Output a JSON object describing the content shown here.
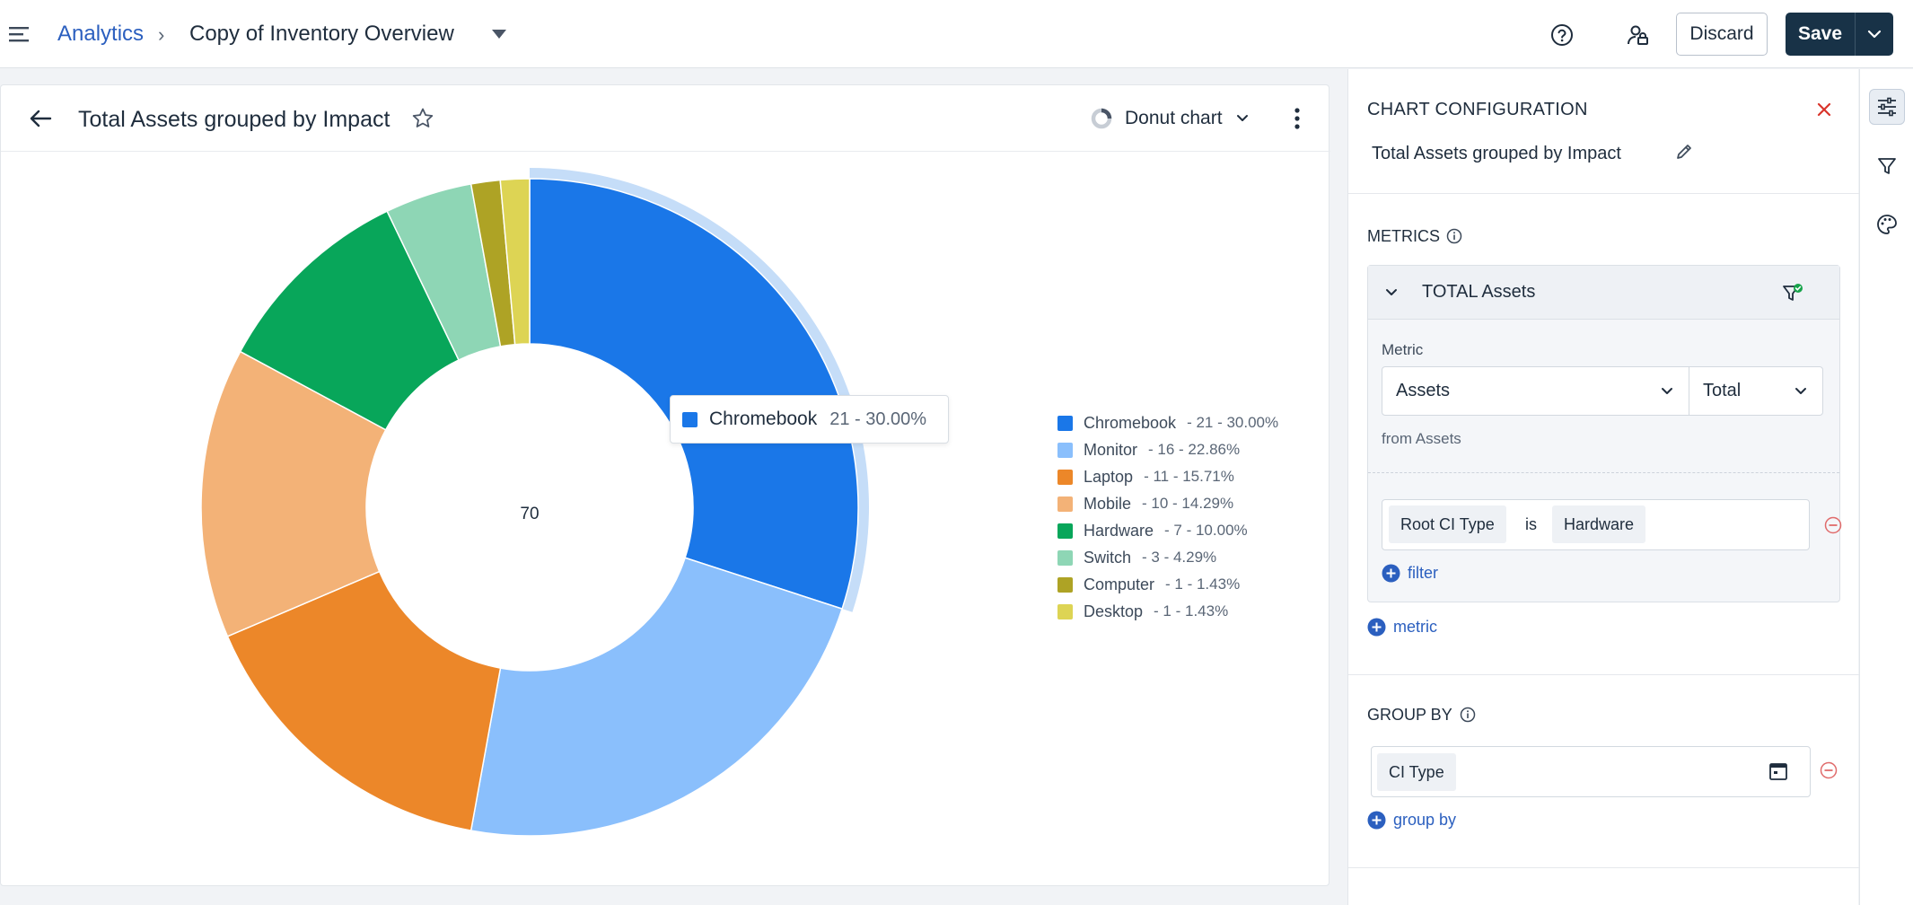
{
  "topbar": {
    "breadcrumb_root": "Analytics",
    "breadcrumb_sep": "›",
    "breadcrumb_title": "Copy of Inventory Overview",
    "discard_label": "Discard",
    "save_label": "Save"
  },
  "card": {
    "title": "Total Assets grouped by Impact",
    "chart_type_label": "Donut chart"
  },
  "tooltip": {
    "name": "Chromebook",
    "value": "21 - 30.00%"
  },
  "chart_data": {
    "type": "pie",
    "variant": "donut",
    "center_label": "70",
    "highlighted": "Chromebook",
    "categories": [
      "Chromebook",
      "Monitor",
      "Laptop",
      "Mobile",
      "Hardware",
      "Switch",
      "Computer",
      "Desktop"
    ],
    "values": [
      21,
      16,
      11,
      10,
      7,
      3,
      1,
      1
    ],
    "colors": [
      "#1a77e8",
      "#8abffc",
      "#ec8729",
      "#f3b277",
      "#08a65a",
      "#8ed6b5",
      "#aea325",
      "#ddd454"
    ],
    "legend": [
      {
        "name": "Chromebook",
        "value": "- 21 - 30.00%"
      },
      {
        "name": "Monitor",
        "value": "- 16 - 22.86%"
      },
      {
        "name": "Laptop",
        "value": "- 11 - 15.71%"
      },
      {
        "name": "Mobile",
        "value": "- 10 - 14.29%"
      },
      {
        "name": "Hardware",
        "value": "- 7 - 10.00%"
      },
      {
        "name": "Switch",
        "value": "- 3 - 4.29%"
      },
      {
        "name": "Computer",
        "value": "- 1 - 1.43%"
      },
      {
        "name": "Desktop",
        "value": "- 1 - 1.43%"
      }
    ],
    "legend_position": "right"
  },
  "config": {
    "heading": "CHART CONFIGURATION",
    "chart_name": "Total Assets grouped by Impact",
    "metrics_label": "METRICS",
    "metric": {
      "name": "TOTAL Assets",
      "field_label": "Metric",
      "source_value": "Assets",
      "aggregation_value": "Total",
      "from_label": "from Assets",
      "filter": {
        "key": "Root CI Type",
        "op": "is",
        "value": "Hardware"
      },
      "add_filter_label": "filter"
    },
    "add_metric_label": "metric",
    "group_by_label": "GROUP BY",
    "group_by_value": "CI Type",
    "add_group_label": "group by"
  },
  "icons": {
    "accent": "#2b5fbf",
    "danger": "#d9342b"
  }
}
